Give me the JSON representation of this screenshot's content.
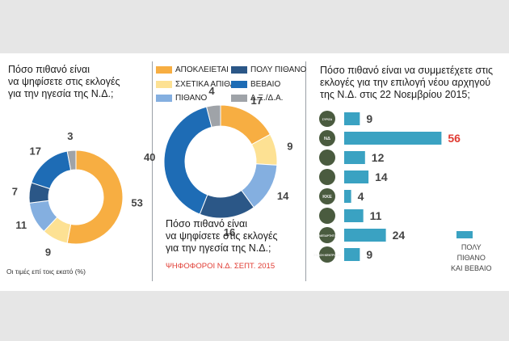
{
  "colors": {
    "apokleietai": "#f7ae42",
    "sxetika_apithano": "#fde193",
    "pithano": "#84afe0",
    "poly_pithano": "#2b5787",
    "vevaio": "#1e6cb5",
    "dxda": "#9fa3a8",
    "bar": "#3aa2c2",
    "highlight": "#e03b32",
    "text": "#444444"
  },
  "left": {
    "question": [
      "Πόσο πιθανό είναι",
      "να ψηφίσετε στις εκλογές",
      "για την ηγεσία της Ν.Δ.;"
    ],
    "note": "Οι τιμές επί τοις εκατό (%)"
  },
  "legend": [
    {
      "label": "ΑΠΟΚΛΕΙΕΤΑΙ",
      "color": "#f7ae42"
    },
    {
      "label": "ΣΧΕΤΙΚΑ ΑΠΙΘΑΝΟ",
      "color": "#fde193"
    },
    {
      "label": "ΠΙΘΑΝΟ",
      "color": "#84afe0"
    },
    {
      "label": "ΠΟΛΥ ΠΙΘΑΝΟ",
      "color": "#2b5787"
    },
    {
      "label": "ΒΕΒΑΙΟ",
      "color": "#1e6cb5"
    },
    {
      "label": "Δ.Ξ./Δ.Α.",
      "color": "#9fa3a8"
    }
  ],
  "middle": {
    "question": [
      "Πόσο πιθανό είναι",
      "να ψηφίσετε στις εκλογές",
      "για την ηγεσία της Ν.Δ.;"
    ],
    "subtitle": "ΨΗΦΟΦΟΡΟΙ Ν.Δ. ΣΕΠΤ. 2015"
  },
  "right": {
    "question": [
      "Πόσο πιθανό είναι να συμμετέχετε στις",
      "εκλογές για την επιλογή νέου αρχηγού",
      "της Ν.Δ. στις 22 Νοεμβρίου 2015;"
    ],
    "bar_legend": [
      "ΠΟΛΥ",
      "ΠΙΘΑΝΟ",
      "ΚΑΙ ΒΕΒΑΙΟ"
    ]
  },
  "chart_data": [
    {
      "type": "pie",
      "variant": "donut",
      "title": "Πόσο πιθανό είναι να ψηφίσετε στις εκλογές για την ηγεσία της Ν.Δ.;",
      "categories": [
        "ΑΠΟΚΛΕΙΕΤΑΙ",
        "ΣΧΕΤΙΚΑ ΑΠΙΘΑΝΟ",
        "ΠΙΘΑΝΟ",
        "ΠΟΛΥ ΠΙΘΑΝΟ",
        "ΒΕΒΑΙΟ",
        "Δ.Ξ./Δ.Α."
      ],
      "values": [
        53,
        9,
        11,
        7,
        17,
        3
      ],
      "colors": [
        "#f7ae42",
        "#fde193",
        "#84afe0",
        "#2b5787",
        "#1e6cb5",
        "#9fa3a8"
      ],
      "unit": "%"
    },
    {
      "type": "pie",
      "variant": "donut",
      "title": "Πόσο πιθανό είναι να ψηφίσετε στις εκλογές για την ηγεσία της Ν.Δ.;",
      "subtitle": "ΨΗΦΟΦΟΡΟΙ Ν.Δ. ΣΕΠΤ. 2015",
      "categories": [
        "ΑΠΟΚΛΕΙΕΤΑΙ",
        "ΣΧΕΤΙΚΑ ΑΠΙΘΑΝΟ",
        "ΠΙΘΑΝΟ",
        "ΠΟΛΥ ΠΙΘΑΝΟ",
        "ΒΕΒΑΙΟ",
        "Δ.Ξ./Δ.Α."
      ],
      "values": [
        17,
        9,
        14,
        16,
        40,
        4
      ],
      "colors": [
        "#f7ae42",
        "#fde193",
        "#84afe0",
        "#2b5787",
        "#1e6cb5",
        "#9fa3a8"
      ],
      "unit": "%"
    },
    {
      "type": "bar",
      "orientation": "horizontal",
      "title": "Πόσο πιθανό είναι να συμμετέχετε στις εκλογές για την επιλογή νέου αρχηγού της Ν.Δ. στις 22 Νοεμβρίου 2015;",
      "series": [
        {
          "name": "ΠΟΛΥ ΠΙΘΑΝΟ ΚΑΙ ΒΕΒΑΙΟ",
          "values": [
            9,
            56,
            12,
            14,
            4,
            11,
            24,
            9
          ]
        }
      ],
      "icons": [
        "ΣΥΡΙΖΑ",
        "ΝΔ",
        "",
        "",
        "ΚΚΕ",
        "",
        "ΑΝΕΞΑΡΤΗΤΟΙ",
        "ΕΝΩΣΗ ΚΕΝΤΡΩΩΝ"
      ],
      "highlight_index": 1
    }
  ]
}
